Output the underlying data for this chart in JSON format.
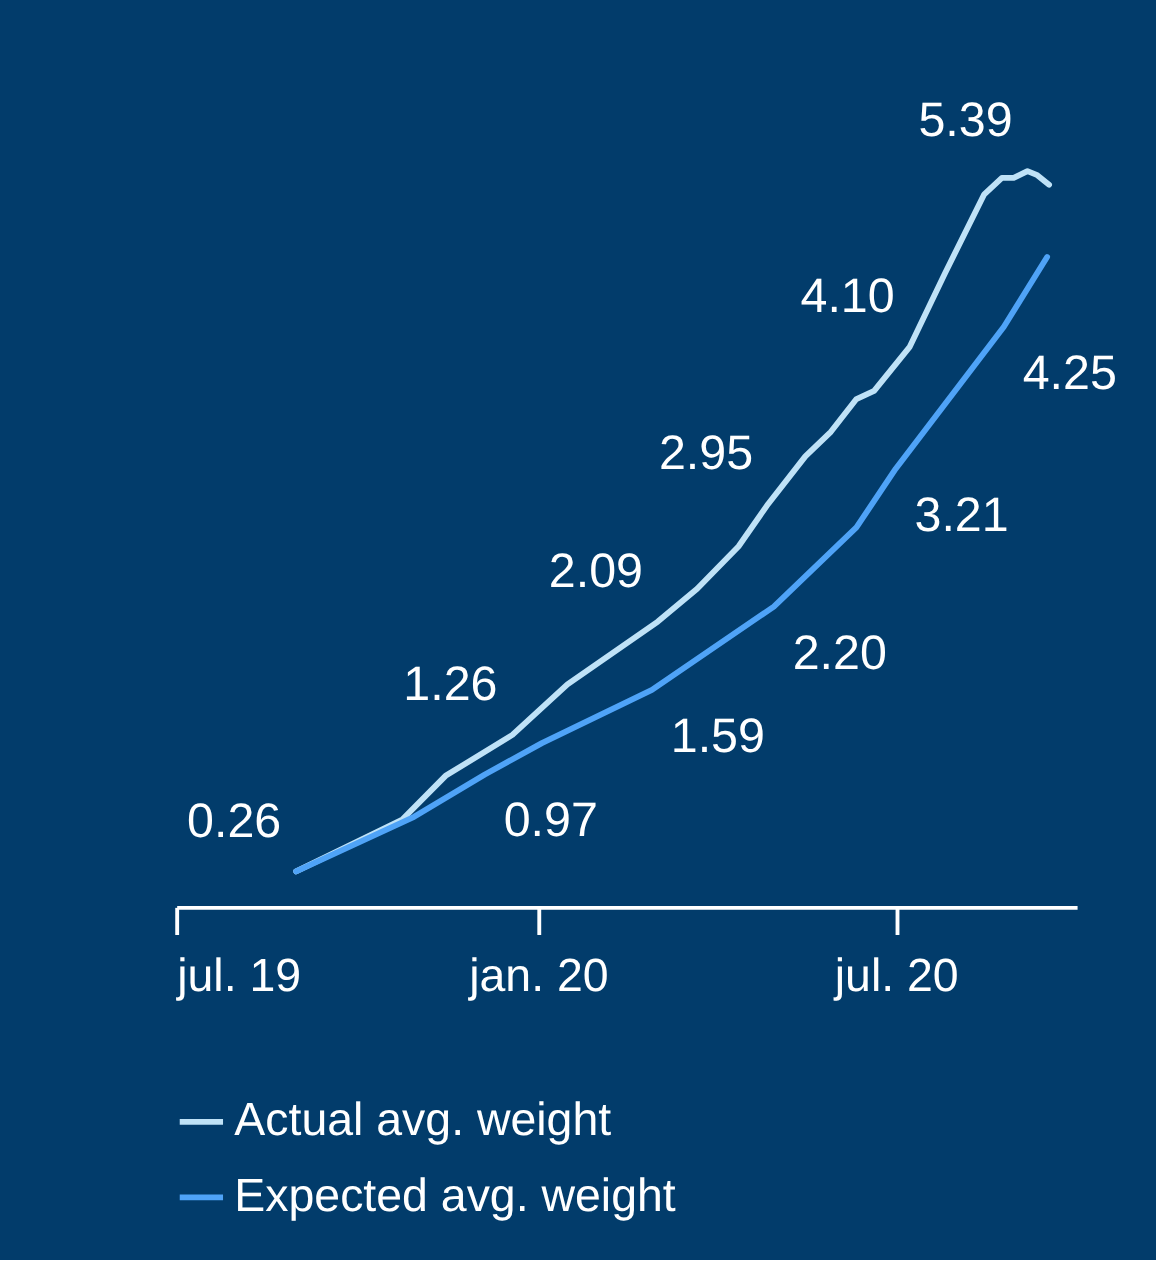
{
  "chart_data": {
    "type": "line",
    "series": [
      {
        "name": "Actual avg. weight",
        "color": "#bfe2f7",
        "x": [
          "2019-08-31",
          "2019-10-24",
          "2019-11-15",
          "2019-12-19",
          "2020-01-16",
          "2020-03-02",
          "2020-03-22",
          "2020-04-12",
          "2020-04-27",
          "2020-05-16",
          "2020-05-29",
          "2020-06-11",
          "2020-06-20",
          "2020-07-08",
          "2020-07-26",
          "2020-08-15",
          "2020-08-24",
          "2020-08-30",
          "2020-09-06",
          "2020-09-11",
          "2020-09-17"
        ],
        "values": [
          0.26,
          0.64,
          0.96,
          1.26,
          1.63,
          2.09,
          2.33,
          2.64,
          2.95,
          3.3,
          3.48,
          3.72,
          3.78,
          4.1,
          4.64,
          5.22,
          5.34,
          5.34,
          5.39,
          5.36,
          5.29
        ],
        "value_labels": [
          "0.26",
          null,
          null,
          "1.26",
          null,
          "2.09",
          null,
          null,
          "2.95",
          null,
          null,
          null,
          null,
          "4.10",
          null,
          null,
          null,
          null,
          "5.39",
          null,
          null
        ]
      },
      {
        "name": "Expected avg. weight",
        "color": "#4fa3f7",
        "x": [
          "2019-08-31",
          "2019-10-30",
          "2019-12-05",
          "2020-01-03",
          "2020-02-28",
          "2020-04-30",
          "2020-06-11",
          "2020-07-01",
          "2020-08-25",
          "2020-09-16"
        ],
        "values": [
          0.26,
          0.66,
          0.97,
          1.2,
          1.59,
          2.2,
          2.78,
          3.21,
          4.25,
          4.76
        ],
        "value_labels": [
          null,
          null,
          "0.97",
          null,
          "1.59",
          "2.20",
          null,
          "3.21",
          "4.25",
          null
        ]
      }
    ],
    "xlim": [
      "2019-07-01",
      "2020-10-01"
    ],
    "xticks": [
      {
        "value": "2019-07-01",
        "label": "jul. 19"
      },
      {
        "value": "2020-01-01",
        "label": "jan. 20"
      },
      {
        "value": "2020-07-01",
        "label": "jul. 20"
      }
    ],
    "tick_labels": "x",
    "grid": false,
    "legend": "bottom",
    "line_style": "solid",
    "marker": "none"
  }
}
